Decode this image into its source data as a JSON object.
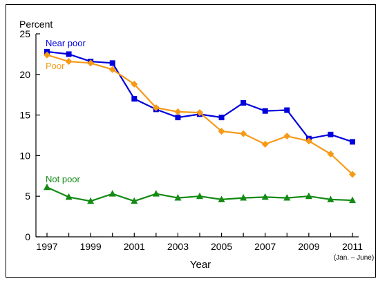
{
  "chart_data": {
    "type": "line",
    "ylabel": "Percent",
    "xlabel": "Year",
    "x_note": "(Jan. – June)",
    "ylim": [
      0,
      25
    ],
    "y_ticks": [
      0,
      5,
      10,
      15,
      20,
      25
    ],
    "x_ticks": [
      "1997",
      "1999",
      "2001",
      "2003",
      "2005",
      "2007",
      "2009",
      "2011"
    ],
    "x": [
      1997,
      1998,
      1999,
      2000,
      2001,
      2002,
      2003,
      2004,
      2005,
      2006,
      2007,
      2008,
      2009,
      2010,
      2011
    ],
    "xlim": [
      1997,
      2011
    ],
    "grid": false,
    "series": [
      {
        "name": "Near poor",
        "color": "#0000dd",
        "marker": "square",
        "values": [
          22.8,
          22.5,
          21.6,
          21.4,
          17.0,
          15.7,
          14.7,
          15.1,
          14.7,
          16.5,
          15.5,
          15.6,
          12.1,
          12.6,
          11.7
        ]
      },
      {
        "name": "Poor",
        "color": "#f59a17",
        "marker": "diamond",
        "values": [
          22.4,
          21.6,
          21.4,
          20.6,
          18.8,
          15.9,
          15.4,
          15.3,
          13.0,
          12.7,
          11.4,
          12.4,
          11.8,
          10.2,
          7.7
        ]
      },
      {
        "name": "Not poor",
        "color": "#138a13",
        "marker": "triangle",
        "values": [
          6.1,
          4.9,
          4.4,
          5.3,
          4.4,
          5.3,
          4.8,
          5.0,
          4.6,
          4.8,
          4.9,
          4.8,
          5.0,
          4.6,
          4.5
        ]
      }
    ]
  }
}
